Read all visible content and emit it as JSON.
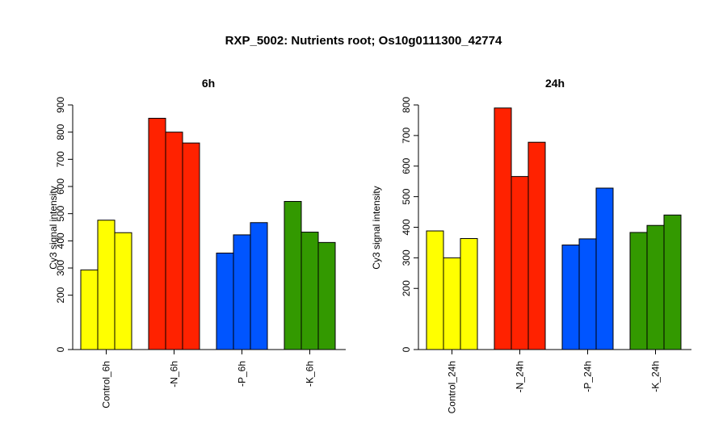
{
  "title": "RXP_5002: Nutrients root; Os10g0111300_42774",
  "chart_data": [
    {
      "type": "bar",
      "title": "6h",
      "ylabel": "Cy3 signal intensity",
      "ylim": [
        0,
        900
      ],
      "yticks": [
        0,
        200,
        300,
        400,
        500,
        600,
        700,
        800,
        900
      ],
      "categories": [
        "Control_6h",
        "-N_6h",
        "-P_6h",
        "-K_6h"
      ],
      "colors": [
        "#ffff00",
        "#ff2200",
        "#0055ff",
        "#339900"
      ],
      "values": [
        [
          293,
          476,
          430
        ],
        [
          851,
          800,
          760
        ],
        [
          355,
          422,
          467
        ],
        [
          545,
          432,
          394
        ]
      ]
    },
    {
      "type": "bar",
      "title": "24h",
      "ylabel": "Cy3 signal intensity",
      "ylim": [
        0,
        800
      ],
      "yticks": [
        0,
        200,
        300,
        400,
        500,
        600,
        700,
        800
      ],
      "categories": [
        "Control_24h",
        "-N_24h",
        "-P_24h",
        "-K_24h"
      ],
      "colors": [
        "#ffff00",
        "#ff2200",
        "#0055ff",
        "#339900"
      ],
      "values": [
        [
          388,
          300,
          363
        ],
        [
          790,
          566,
          678
        ],
        [
          342,
          362,
          528
        ],
        [
          383,
          406,
          440
        ]
      ]
    }
  ]
}
